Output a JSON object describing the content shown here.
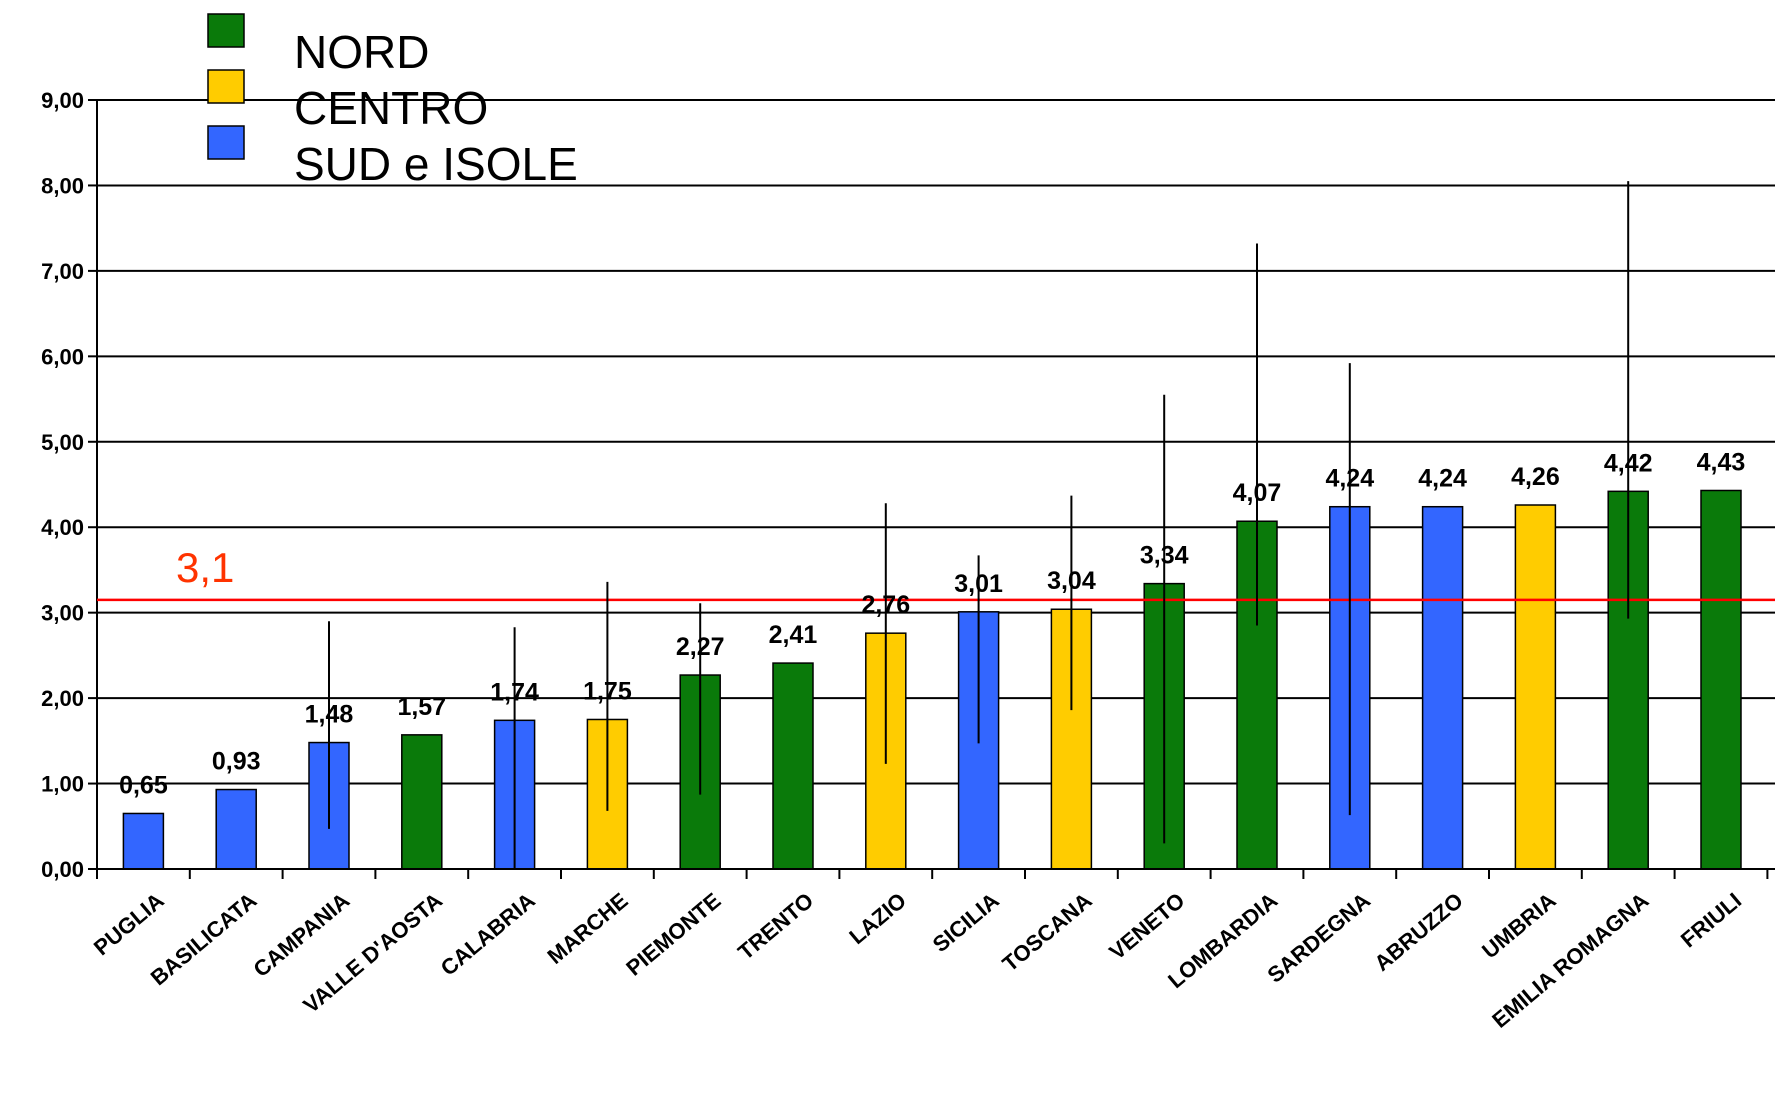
{
  "chart_data": {
    "type": "bar",
    "title": "",
    "xlabel": "",
    "ylabel": "",
    "ylim": [
      0,
      9
    ],
    "yticks": [
      "0,00",
      "1,00",
      "2,00",
      "3,00",
      "4,00",
      "5,00",
      "6,00",
      "7,00",
      "8,00",
      "9,00"
    ],
    "grid": true,
    "legend_position": "top-left",
    "legend": [
      {
        "label": "NORD",
        "color": "#0a7a0a"
      },
      {
        "label": "CENTRO",
        "color": "#ffcc00"
      },
      {
        "label": "SUD e ISOLE",
        "color": "#3366ff"
      }
    ],
    "colors": {
      "NORD": "#0a7a0a",
      "CENTRO": "#ffcc00",
      "SUD e ISOLE": "#3366ff",
      "reference": "#ff0000"
    },
    "categories": [
      "PUGLIA",
      "BASILICATA",
      "CAMPANIA",
      "VALLE D'AOSTA",
      "CALABRIA",
      "MARCHE",
      "PIEMONTE",
      "TRENTO",
      "LAZIO",
      "SICILIA",
      "TOSCANA",
      "VENETO",
      "LOMBARDIA",
      "SARDEGNA",
      "ABRUZZO",
      "UMBRIA",
      "EMILIA ROMAGNA",
      "FRIULI"
    ],
    "values": [
      0.65,
      0.93,
      1.48,
      1.57,
      1.74,
      1.75,
      2.27,
      2.41,
      2.76,
      3.01,
      3.04,
      3.34,
      4.07,
      4.24,
      4.24,
      4.26,
      4.42,
      4.43
    ],
    "value_labels": [
      "0,65",
      "0,93",
      "1,48",
      "1,57",
      "1,74",
      "1,75",
      "2,27",
      "2,41",
      "2,76",
      "3,01",
      "3,04",
      "3,34",
      "4,07",
      "4,24",
      "4,24",
      "4,26",
      "4,42",
      "4,43"
    ],
    "groups": [
      "SUD e ISOLE",
      "SUD e ISOLE",
      "SUD e ISOLE",
      "NORD",
      "SUD e ISOLE",
      "CENTRO",
      "NORD",
      "NORD",
      "CENTRO",
      "SUD e ISOLE",
      "CENTRO",
      "NORD",
      "NORD",
      "SUD e ISOLE",
      "SUD e ISOLE",
      "CENTRO",
      "NORD",
      "NORD"
    ],
    "error_bars": [
      null,
      null,
      [
        0.47,
        2.9
      ],
      null,
      [
        0.0,
        2.83
      ],
      [
        0.68,
        3.36
      ],
      [
        0.87,
        3.11
      ],
      null,
      [
        1.23,
        4.28
      ],
      [
        1.47,
        3.67
      ],
      [
        1.86,
        4.37
      ],
      [
        0.3,
        5.55
      ],
      [
        2.85,
        7.32
      ],
      [
        0.63,
        5.92
      ],
      null,
      null,
      [
        2.93,
        8.05
      ],
      null
    ],
    "reference_line": {
      "value": 3.15,
      "label": "3,1"
    }
  }
}
